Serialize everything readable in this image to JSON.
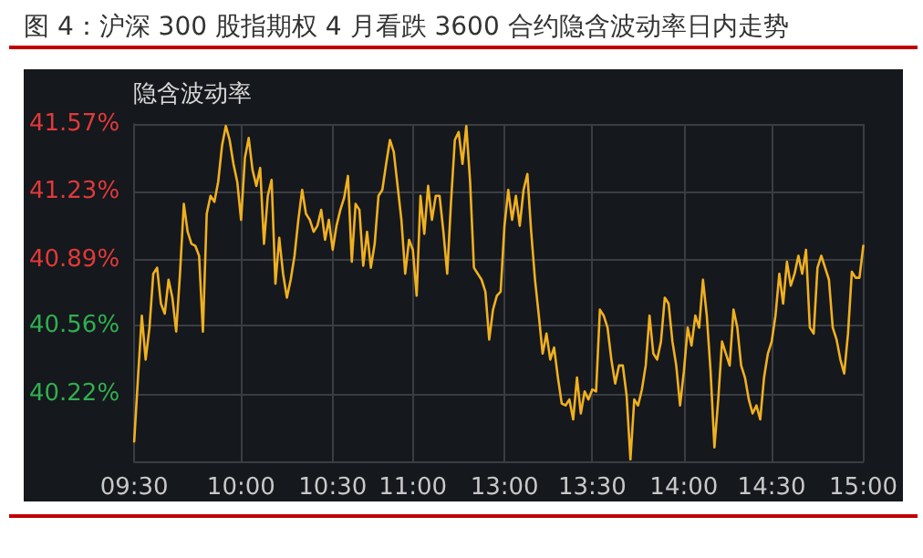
{
  "chart_data": {
    "type": "line",
    "title": "图 4：沪深 300 股指期权 4 月看跌 3600 合约隐含波动率日内走势",
    "categories": [
      "09:30",
      null,
      null,
      null,
      null,
      null,
      null,
      null,
      null,
      null,
      null,
      null,
      null,
      null,
      null,
      null,
      null,
      null,
      null,
      null,
      null,
      null,
      null,
      null,
      null,
      null,
      null,
      null,
      "10:00",
      null,
      null,
      null,
      null,
      null,
      null,
      null,
      null,
      null,
      null,
      null,
      null,
      null,
      null,
      null,
      null,
      null,
      null,
      null,
      null,
      null,
      null,
      null,
      "10:30",
      null,
      null,
      null,
      null,
      null,
      null,
      null,
      null,
      null,
      null,
      null,
      null,
      null,
      null,
      null,
      null,
      null,
      null,
      null,
      null,
      "11:00",
      null,
      null,
      null,
      null,
      null,
      null,
      null,
      null,
      null,
      null,
      null,
      null,
      null,
      null,
      null,
      null,
      null,
      null,
      null,
      null,
      null,
      null,
      null,
      "13:00",
      null,
      null,
      null,
      null,
      null,
      null,
      null,
      null,
      null,
      null,
      null,
      null,
      null,
      null,
      null,
      null,
      null,
      null,
      null,
      null,
      null,
      null,
      "13:30",
      null,
      null,
      null,
      null,
      null,
      null,
      null,
      null,
      null,
      null,
      null,
      null,
      null,
      null,
      null,
      null,
      null,
      null,
      null,
      null,
      null,
      null,
      null,
      "14:00",
      null,
      null,
      null,
      null,
      null,
      null,
      null,
      null,
      null,
      null,
      null,
      null,
      null,
      null,
      null,
      null,
      null,
      null,
      null,
      null,
      null,
      null,
      "14:30",
      null,
      null,
      null,
      null,
      null,
      null,
      null,
      null,
      null,
      null,
      null,
      null,
      null,
      null,
      null,
      null,
      null,
      null,
      null,
      null,
      null,
      null,
      null,
      "15:00"
    ],
    "series": [
      {
        "name": "隐含波动率",
        "color": "#f0b020",
        "values": [
          39.98,
          40.3,
          40.61,
          40.39,
          40.55,
          40.82,
          40.85,
          40.67,
          40.62,
          40.79,
          40.7,
          40.53,
          40.82,
          41.17,
          41.03,
          40.97,
          40.96,
          40.91,
          40.53,
          41.12,
          41.21,
          41.18,
          41.28,
          41.46,
          41.56,
          41.49,
          41.37,
          41.28,
          41.09,
          41.4,
          41.5,
          41.34,
          41.26,
          41.35,
          40.97,
          41.21,
          41.29,
          40.77,
          41.0,
          40.82,
          40.7,
          40.79,
          40.91,
          41.09,
          41.24,
          41.12,
          41.09,
          41.03,
          41.06,
          41.14,
          40.99,
          41.09,
          40.94,
          41.06,
          41.14,
          41.2,
          41.31,
          40.88,
          41.17,
          41.14,
          40.86,
          41.03,
          40.85,
          40.97,
          41.21,
          41.24,
          41.37,
          41.49,
          41.43,
          41.26,
          41.09,
          40.82,
          40.99,
          40.94,
          40.71,
          41.21,
          41.02,
          41.26,
          41.09,
          41.21,
          41.21,
          41.03,
          40.82,
          41.18,
          41.49,
          41.53,
          41.37,
          41.56,
          41.28,
          40.85,
          40.82,
          40.79,
          40.73,
          40.49,
          40.64,
          40.71,
          40.73,
          41.06,
          41.24,
          41.09,
          41.21,
          41.06,
          41.24,
          41.32,
          41.03,
          40.79,
          40.61,
          40.42,
          40.52,
          40.39,
          40.45,
          40.3,
          40.17,
          40.16,
          40.19,
          40.09,
          40.3,
          40.12,
          40.23,
          40.19,
          40.24,
          40.23,
          40.64,
          40.61,
          40.55,
          40.39,
          40.27,
          40.36,
          40.36,
          40.21,
          39.89,
          40.19,
          40.16,
          40.24,
          40.36,
          40.61,
          40.42,
          40.39,
          40.48,
          40.7,
          40.67,
          40.48,
          40.36,
          40.16,
          40.33,
          40.55,
          40.46,
          40.61,
          40.55,
          40.79,
          40.61,
          40.33,
          39.95,
          40.19,
          40.48,
          40.42,
          40.36,
          40.64,
          40.55,
          40.36,
          40.3,
          40.19,
          40.12,
          40.16,
          40.09,
          40.3,
          40.42,
          40.48,
          40.61,
          40.82,
          40.67,
          40.88,
          40.76,
          40.82,
          40.91,
          40.82,
          40.94,
          40.55,
          40.52,
          40.85,
          40.91,
          40.85,
          40.79,
          40.55,
          40.49,
          40.39,
          40.32,
          40.52,
          40.83,
          40.8,
          40.8,
          40.96
        ]
      }
    ],
    "ylim": [
      39.88,
      41.57
    ],
    "yticks": [
      {
        "value": 40.22,
        "label": "40.22%"
      },
      {
        "value": 40.56,
        "label": "40.56%"
      },
      {
        "value": 40.89,
        "label": "40.89%"
      },
      {
        "value": 41.23,
        "label": "41.23%"
      },
      {
        "value": 41.57,
        "label": "41.57%"
      }
    ],
    "grid": true,
    "legend": "top left",
    "marker": "none",
    "line_style": "solid"
  }
}
